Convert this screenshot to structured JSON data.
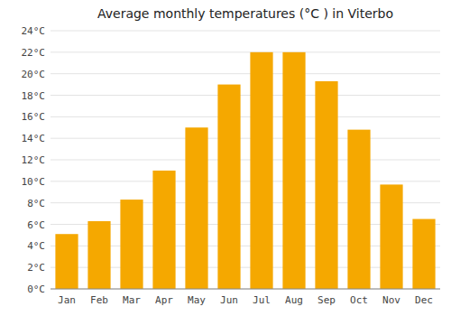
{
  "chart_data": {
    "type": "bar",
    "title": "Average monthly temperatures (°C ) in Viterbo",
    "categories": [
      "Jan",
      "Feb",
      "Mar",
      "Apr",
      "May",
      "Jun",
      "Jul",
      "Aug",
      "Sep",
      "Oct",
      "Nov",
      "Dec"
    ],
    "values": [
      5.1,
      6.3,
      8.3,
      11.0,
      15.0,
      19.0,
      22.0,
      22.0,
      19.3,
      14.8,
      9.7,
      6.5
    ],
    "color": "#F5A800",
    "ylim": [
      0,
      24
    ],
    "yticks": [
      {
        "value": 0,
        "label": "0°C"
      },
      {
        "value": 2,
        "label": "2°C"
      },
      {
        "value": 4,
        "label": "4°C"
      },
      {
        "value": 6,
        "label": "6°C"
      },
      {
        "value": 8,
        "label": "8°C"
      },
      {
        "value": 10,
        "label": "10°C"
      },
      {
        "value": 12,
        "label": "12°C"
      },
      {
        "value": 14,
        "label": "14°C"
      },
      {
        "value": 16,
        "label": "16°C"
      },
      {
        "value": 18,
        "label": "18°C"
      },
      {
        "value": 20,
        "label": "20°C"
      },
      {
        "value": 22,
        "label": "22°C"
      },
      {
        "value": 24,
        "label": "24°C"
      }
    ],
    "grid": true
  }
}
